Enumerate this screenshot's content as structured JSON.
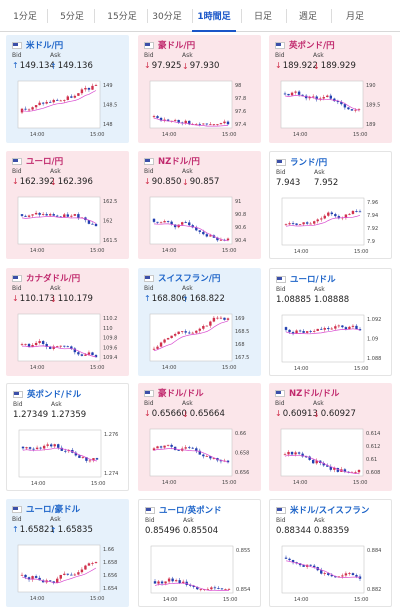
{
  "tabs": [
    "1分足",
    "5分足",
    "15分足",
    "30分足",
    "1時間足",
    "日足",
    "週足",
    "月足"
  ],
  "active_tab": 4,
  "labels": {
    "bid": "Bid",
    "ask": "Ask"
  },
  "colors": {
    "up_arrow": "#1c63c8",
    "down_arrow": "#d0304c",
    "pos_bg": "#e6f1fb",
    "neg_bg": "#fbe6ea"
  },
  "cards": [
    {
      "name": "米ドル/円",
      "state": "pos",
      "flag": "us-flag",
      "bid": "149.134",
      "ask": "149.136",
      "dir": "up",
      "x_ticks": [
        "14:00",
        "15:00"
      ],
      "y_ticks": [
        "149",
        "148.5",
        "148"
      ]
    },
    {
      "name": "豪ドル/円",
      "state": "neg",
      "flag": "au-flag",
      "bid": "97.925",
      "ask": "97.930",
      "dir": "down",
      "x_ticks": [
        "14:00",
        "15:00"
      ],
      "y_ticks": [
        "98",
        "97.8",
        "97.6",
        "97.4"
      ]
    },
    {
      "name": "英ポンド/円",
      "state": "neg",
      "flag": "gb-flag",
      "bid": "189.922",
      "ask": "189.929",
      "dir": "down",
      "x_ticks": [
        "14:00",
        "15:00"
      ],
      "y_ticks": [
        "190",
        "189.5",
        "189"
      ]
    },
    {
      "name": "ユーロ/円",
      "state": "neg",
      "flag": "eu-flag",
      "bid": "162.392",
      "ask": "162.396",
      "dir": "down",
      "x_ticks": [
        "14:00",
        "15:00"
      ],
      "y_ticks": [
        "162.5",
        "162",
        "161.5"
      ]
    },
    {
      "name": "NZドル/円",
      "state": "neg",
      "flag": "nz-flag",
      "bid": "90.850",
      "ask": "90.857",
      "dir": "down",
      "x_ticks": [
        "14:00",
        "15:00"
      ],
      "y_ticks": [
        "91",
        "90.8",
        "90.6",
        "90.4"
      ]
    },
    {
      "name": "ランド/円",
      "state": "flat",
      "flag": "za-flag",
      "bid": "7.943",
      "ask": "7.952",
      "dir": "none",
      "x_ticks": [
        "14:00",
        "15:00"
      ],
      "y_ticks": [
        "7.96",
        "7.94",
        "7.92",
        "7.9"
      ]
    },
    {
      "name": "カナダドル/円",
      "state": "neg",
      "flag": "ca-flag",
      "bid": "110.173",
      "ask": "110.179",
      "dir": "down",
      "x_ticks": [
        "14:00",
        "15:00"
      ],
      "y_ticks": [
        "110.2",
        "110",
        "109.8",
        "109.6",
        "109.4"
      ]
    },
    {
      "name": "スイスフラン/円",
      "state": "pos",
      "flag": "ch-flag",
      "bid": "168.806",
      "ask": "168.822",
      "dir": "up",
      "x_ticks": [
        "14:00",
        "15:00"
      ],
      "y_ticks": [
        "169",
        "168.5",
        "168",
        "167.5"
      ]
    },
    {
      "name": "ユーロ/ドル",
      "state": "flat",
      "flag": "eu-flag",
      "bid": "1.08885",
      "ask": "1.08888",
      "dir": "none",
      "x_ticks": [
        "14:00",
        "15:00"
      ],
      "y_ticks": [
        "1.092",
        "1.09",
        "1.088"
      ]
    },
    {
      "name": "英ポンド/ドル",
      "state": "flat",
      "flag": "gb-flag",
      "bid": "1.27349",
      "ask": "1.27359",
      "dir": "none",
      "x_ticks": [
        "14:00",
        "15:00"
      ],
      "y_ticks": [
        "1.276",
        "1.274"
      ]
    },
    {
      "name": "豪ドル/ドル",
      "state": "neg",
      "flag": "au-flag",
      "bid": "0.65660",
      "ask": "0.65664",
      "dir": "down",
      "x_ticks": [
        "14:00",
        "15:00"
      ],
      "y_ticks": [
        "0.66",
        "0.658",
        "0.656"
      ]
    },
    {
      "name": "NZドル/ドル",
      "state": "neg",
      "flag": "nz-flag",
      "bid": "0.60913",
      "ask": "0.60927",
      "dir": "down",
      "x_ticks": [
        "14:00",
        "15:00"
      ],
      "y_ticks": [
        "0.614",
        "0.612",
        "0.61",
        "0.608"
      ]
    },
    {
      "name": "ユーロ/豪ドル",
      "state": "pos",
      "flag": "eu-flag",
      "bid": "1.65821",
      "ask": "1.65835",
      "dir": "up",
      "x_ticks": [
        "14:00",
        "15:00"
      ],
      "y_ticks": [
        "1.66",
        "1.658",
        "1.656",
        "1.654"
      ]
    },
    {
      "name": "ユーロ/英ポンド",
      "state": "flat",
      "flag": "eu-flag",
      "bid": "0.85496",
      "ask": "0.85504",
      "dir": "none",
      "x_ticks": [
        "14:00",
        "15:00"
      ],
      "y_ticks": [
        "0.855",
        "0.854"
      ]
    },
    {
      "name": "米ドル/スイスフラン",
      "state": "flat",
      "flag": "ch-flag",
      "bid": "0.88344",
      "ask": "0.88359",
      "dir": "none",
      "x_ticks": [
        "14:00",
        "15:00"
      ],
      "y_ticks": [
        "0.884",
        "0.882"
      ]
    }
  ]
}
